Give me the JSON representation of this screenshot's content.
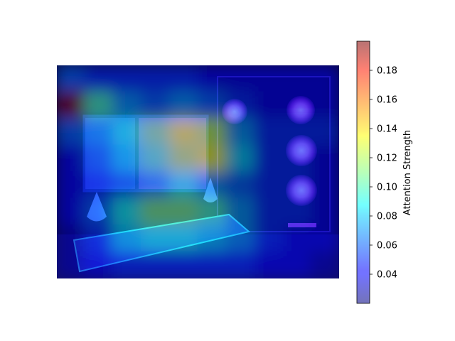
{
  "chart_data": {
    "type": "heatmap",
    "title": "",
    "xlabel": "",
    "ylabel": "",
    "colorbar": {
      "label": "Attention Strength",
      "colormap": "jet",
      "alpha": 0.5,
      "range": [
        0.02,
        0.2
      ],
      "ticks": [
        0.04,
        0.06,
        0.08,
        0.1,
        0.12,
        0.14,
        0.16,
        0.18
      ],
      "tick_labels": [
        "0.04",
        "0.06",
        "0.08",
        "0.10",
        "0.12",
        "0.14",
        "0.16",
        "0.18"
      ]
    },
    "axes_visible": false,
    "grid": false,
    "background_photo": "gaming PC setup: RGB tower with purple ring fans, monitor, RGB keyboard",
    "heatmap_grid": {
      "rows": 8,
      "cols": 10,
      "values": [
        [
          0.06,
          0.05,
          0.05,
          0.05,
          0.05,
          0.04,
          0.04,
          0.04,
          0.04,
          0.04
        ],
        [
          0.2,
          0.1,
          0.07,
          0.06,
          0.07,
          0.06,
          0.05,
          0.04,
          0.04,
          0.04
        ],
        [
          0.06,
          0.07,
          0.09,
          0.11,
          0.13,
          0.12,
          0.07,
          0.05,
          0.05,
          0.05
        ],
        [
          0.04,
          0.06,
          0.08,
          0.1,
          0.12,
          0.13,
          0.08,
          0.05,
          0.05,
          0.04
        ],
        [
          0.04,
          0.05,
          0.06,
          0.07,
          0.09,
          0.07,
          0.06,
          0.05,
          0.05,
          0.04
        ],
        [
          0.04,
          0.06,
          0.09,
          0.11,
          0.11,
          0.1,
          0.07,
          0.05,
          0.05,
          0.04
        ],
        [
          0.03,
          0.05,
          0.08,
          0.09,
          0.09,
          0.08,
          0.07,
          0.05,
          0.04,
          0.04
        ],
        [
          0.03,
          0.04,
          0.05,
          0.05,
          0.05,
          0.05,
          0.05,
          0.04,
          0.04,
          0.03
        ]
      ]
    }
  },
  "colors": {
    "colorbar_frame": "#000000",
    "background": "#ffffff"
  }
}
